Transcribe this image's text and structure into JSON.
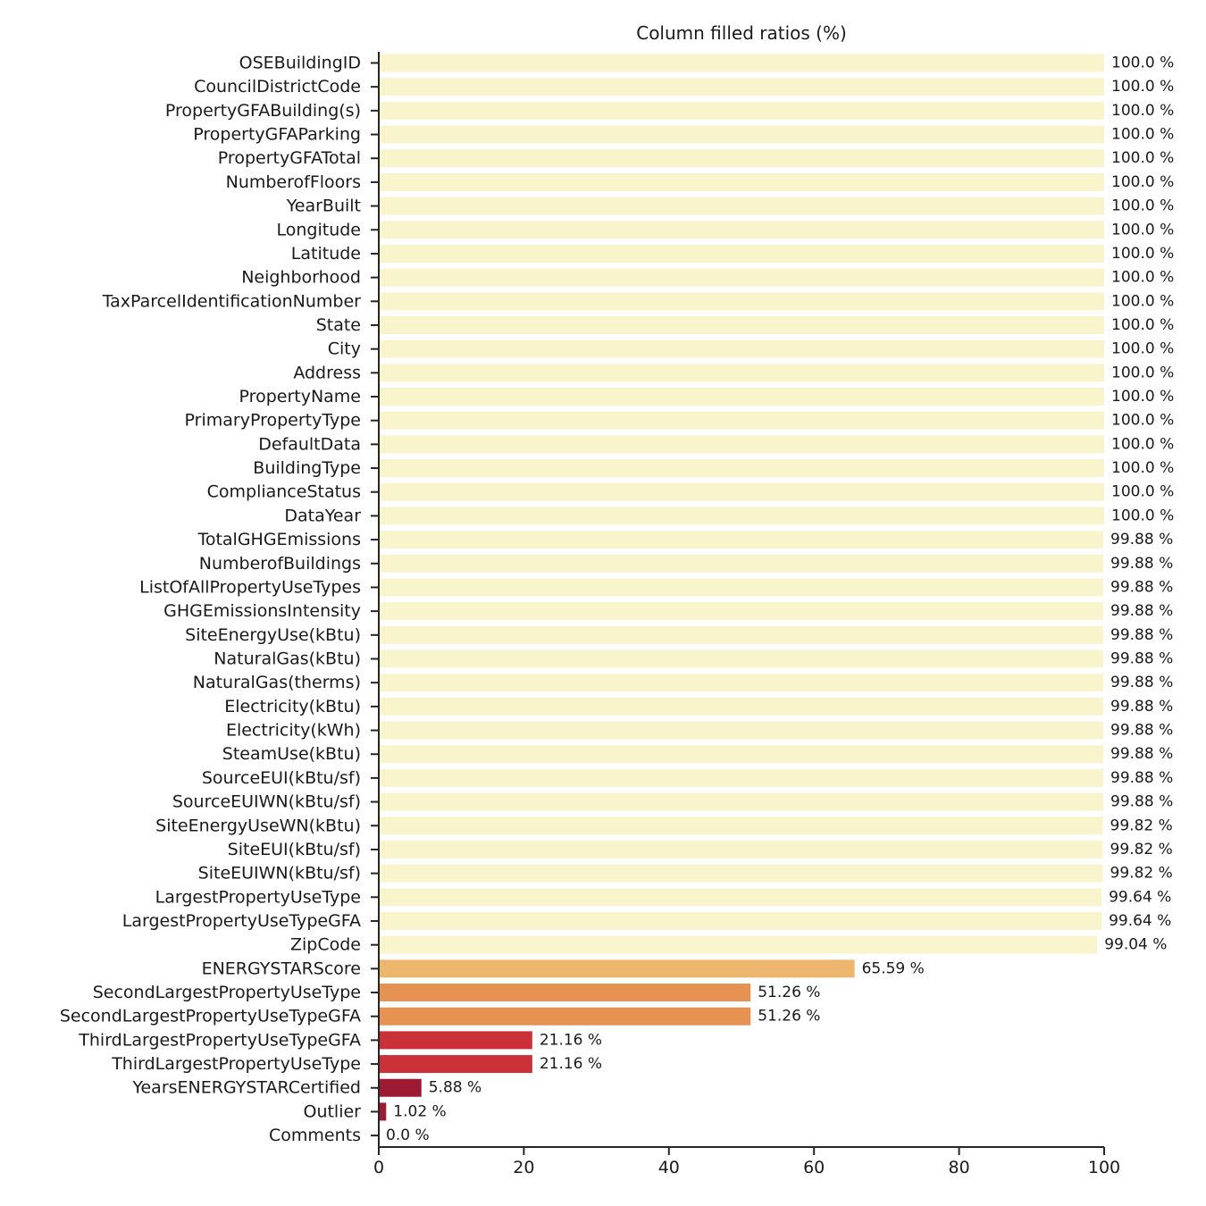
{
  "chart_data": {
    "type": "bar",
    "orientation": "horizontal",
    "title": "Column filled ratios (%)",
    "xlabel": "",
    "ylabel": "",
    "xlim": [
      0,
      100
    ],
    "xticks": [
      0,
      20,
      40,
      60,
      80,
      100
    ],
    "value_suffix": " %",
    "grid": false,
    "categories": [
      "OSEBuildingID",
      "CouncilDistrictCode",
      "PropertyGFABuilding(s)",
      "PropertyGFAParking",
      "PropertyGFATotal",
      "NumberofFloors",
      "YearBuilt",
      "Longitude",
      "Latitude",
      "Neighborhood",
      "TaxParcelIdentificationNumber",
      "State",
      "City",
      "Address",
      "PropertyName",
      "PrimaryPropertyType",
      "DefaultData",
      "BuildingType",
      "ComplianceStatus",
      "DataYear",
      "TotalGHGEmissions",
      "NumberofBuildings",
      "ListOfAllPropertyUseTypes",
      "GHGEmissionsIntensity",
      "SiteEnergyUse(kBtu)",
      "NaturalGas(kBtu)",
      "NaturalGas(therms)",
      "Electricity(kBtu)",
      "Electricity(kWh)",
      "SteamUse(kBtu)",
      "SourceEUI(kBtu/sf)",
      "SourceEUIWN(kBtu/sf)",
      "SiteEnergyUseWN(kBtu)",
      "SiteEUI(kBtu/sf)",
      "SiteEUIWN(kBtu/sf)",
      "LargestPropertyUseType",
      "LargestPropertyUseTypeGFA",
      "ZipCode",
      "ENERGYSTARScore",
      "SecondLargestPropertyUseType",
      "SecondLargestPropertyUseTypeGFA",
      "ThirdLargestPropertyUseTypeGFA",
      "ThirdLargestPropertyUseType",
      "YearsENERGYSTARCertified",
      "Outlier",
      "Comments"
    ],
    "values": [
      100.0,
      100.0,
      100.0,
      100.0,
      100.0,
      100.0,
      100.0,
      100.0,
      100.0,
      100.0,
      100.0,
      100.0,
      100.0,
      100.0,
      100.0,
      100.0,
      100.0,
      100.0,
      100.0,
      100.0,
      99.88,
      99.88,
      99.88,
      99.88,
      99.88,
      99.88,
      99.88,
      99.88,
      99.88,
      99.88,
      99.88,
      99.88,
      99.82,
      99.82,
      99.82,
      99.64,
      99.64,
      99.04,
      65.59,
      51.26,
      51.26,
      21.16,
      21.16,
      5.88,
      1.02,
      0.0
    ],
    "value_labels": [
      "100.0 %",
      "100.0 %",
      "100.0 %",
      "100.0 %",
      "100.0 %",
      "100.0 %",
      "100.0 %",
      "100.0 %",
      "100.0 %",
      "100.0 %",
      "100.0 %",
      "100.0 %",
      "100.0 %",
      "100.0 %",
      "100.0 %",
      "100.0 %",
      "100.0 %",
      "100.0 %",
      "100.0 %",
      "100.0 %",
      "99.88 %",
      "99.88 %",
      "99.88 %",
      "99.88 %",
      "99.88 %",
      "99.88 %",
      "99.88 %",
      "99.88 %",
      "99.88 %",
      "99.88 %",
      "99.88 %",
      "99.88 %",
      "99.82 %",
      "99.82 %",
      "99.82 %",
      "99.64 %",
      "99.64 %",
      "99.04 %",
      "65.59 %",
      "51.26 %",
      "51.26 %",
      "21.16 %",
      "21.16 %",
      "5.88 %",
      "1.02 %",
      "0.0 %"
    ],
    "colors": [
      "#f8f4cc",
      "#f8f4cc",
      "#f8f4cc",
      "#f8f4cc",
      "#f8f4cc",
      "#f8f4cc",
      "#f8f4cc",
      "#f8f4cc",
      "#f8f4cc",
      "#f8f4cc",
      "#f8f4cc",
      "#f8f4cc",
      "#f8f4cc",
      "#f8f4cc",
      "#f8f4cc",
      "#f8f4cc",
      "#f8f4cc",
      "#f8f4cc",
      "#f8f4cc",
      "#f8f4cc",
      "#f8f4cc",
      "#f8f4cc",
      "#f8f4cc",
      "#f8f4cc",
      "#f8f4cc",
      "#f8f4cc",
      "#f8f4cc",
      "#f8f4cc",
      "#f8f4cc",
      "#f8f4cc",
      "#f8f4cc",
      "#f8f4cc",
      "#f8f4cc",
      "#f8f4cc",
      "#f8f4cc",
      "#f8f4cc",
      "#f8f4cc",
      "#f8f4cc",
      "#ecb66c",
      "#e69253",
      "#e69253",
      "#c93038",
      "#c93038",
      "#9c1a33",
      "#9c1a33",
      "#9c1a33"
    ]
  }
}
